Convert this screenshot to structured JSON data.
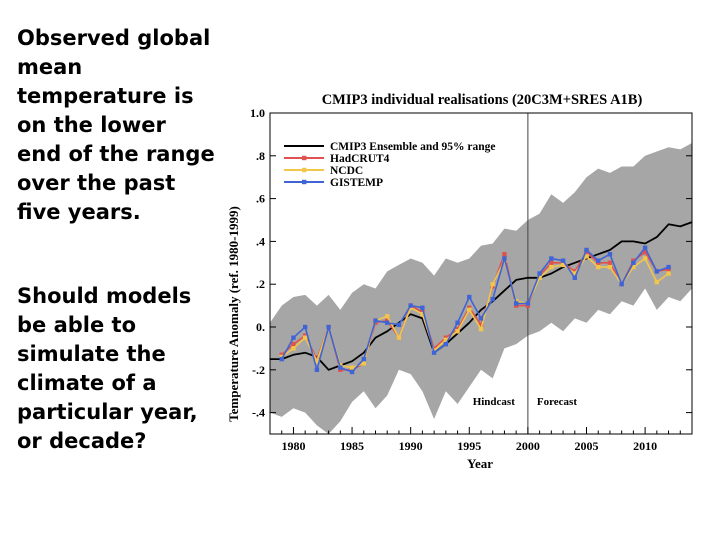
{
  "slide": {
    "paragraph_1": "Observed global mean temperature is on the lower end of the range over the past five years.",
    "paragraph_2": "Should models be able to simulate the climate of a particular year, or decade?"
  },
  "chart_data": {
    "type": "line",
    "title": "CMIP3 individual realisations (20C3M+SRES A1B)",
    "xlabel": "Year",
    "ylabel": "Temperature Anomaly (ref. 1980-1999)",
    "xlim": [
      1978,
      2014
    ],
    "ylim": [
      -0.5,
      1.0
    ],
    "x_ticks": [
      1980,
      1985,
      1990,
      1995,
      2000,
      2005,
      2010
    ],
    "x_tick_labels": [
      "1980",
      "1985",
      "1990",
      "1995",
      "2000",
      "2005",
      "2010"
    ],
    "y_ticks": [
      -0.4,
      -0.2,
      0.0,
      0.2,
      0.4,
      0.6,
      0.8,
      1.0
    ],
    "y_tick_labels": [
      "-.4",
      "-.2",
      "0.",
      ".2",
      ".4",
      ".6",
      ".8",
      "1.0"
    ],
    "divider_year": 2000,
    "annotations": {
      "left": "Hindcast",
      "right": "Forecast"
    },
    "range_band": {
      "name": "95% range",
      "color": "#a6a6a6",
      "x": [
        1978,
        1979,
        1980,
        1981,
        1982,
        1983,
        1984,
        1985,
        1986,
        1987,
        1988,
        1989,
        1990,
        1991,
        1992,
        1993,
        1994,
        1995,
        1996,
        1997,
        1998,
        1999,
        2000,
        2001,
        2002,
        2003,
        2004,
        2005,
        2006,
        2007,
        2008,
        2009,
        2010,
        2011,
        2012,
        2013,
        2014
      ],
      "upper": [
        0.02,
        0.1,
        0.14,
        0.15,
        0.1,
        0.15,
        0.08,
        0.16,
        0.2,
        0.18,
        0.26,
        0.29,
        0.32,
        0.3,
        0.24,
        0.32,
        0.3,
        0.32,
        0.38,
        0.39,
        0.46,
        0.45,
        0.5,
        0.53,
        0.62,
        0.58,
        0.63,
        0.7,
        0.74,
        0.72,
        0.75,
        0.75,
        0.8,
        0.82,
        0.84,
        0.83,
        0.86
      ],
      "lower": [
        -0.4,
        -0.42,
        -0.38,
        -0.4,
        -0.46,
        -0.5,
        -0.44,
        -0.35,
        -0.3,
        -0.38,
        -0.32,
        -0.2,
        -0.22,
        -0.3,
        -0.43,
        -0.3,
        -0.36,
        -0.28,
        -0.2,
        -0.24,
        -0.1,
        -0.08,
        -0.04,
        -0.02,
        0.02,
        -0.02,
        0.04,
        0.02,
        0.08,
        0.06,
        0.12,
        0.1,
        0.18,
        0.08,
        0.14,
        0.12,
        0.18
      ]
    },
    "series": [
      {
        "name": "CMIP3 Ensemble and 95% range",
        "color": "#000000",
        "marker": false,
        "x": [
          1978,
          1979,
          1980,
          1981,
          1982,
          1983,
          1984,
          1985,
          1986,
          1987,
          1988,
          1989,
          1990,
          1991,
          1992,
          1993,
          1994,
          1995,
          1996,
          1997,
          1998,
          1999,
          2000,
          2001,
          2002,
          2003,
          2004,
          2005,
          2006,
          2007,
          2008,
          2009,
          2010,
          2011,
          2012,
          2013,
          2014
        ],
        "values": [
          -0.15,
          -0.15,
          -0.13,
          -0.12,
          -0.14,
          -0.2,
          -0.18,
          -0.16,
          -0.12,
          -0.05,
          -0.02,
          0.02,
          0.06,
          0.04,
          -0.12,
          -0.08,
          -0.03,
          0.02,
          0.08,
          0.12,
          0.17,
          0.22,
          0.23,
          0.23,
          0.25,
          0.28,
          0.3,
          0.32,
          0.34,
          0.36,
          0.4,
          0.4,
          0.39,
          0.42,
          0.48,
          0.47,
          0.49
        ]
      },
      {
        "name": "HadCRUT4",
        "color": "#e0524c",
        "marker": true,
        "x": [
          1979,
          1980,
          1981,
          1982,
          1983,
          1984,
          1985,
          1986,
          1987,
          1988,
          1989,
          1990,
          1991,
          1992,
          1993,
          1994,
          1995,
          1996,
          1997,
          1998,
          1999,
          2000,
          2001,
          2002,
          2003,
          2004,
          2005,
          2006,
          2007,
          2008,
          2009,
          2010,
          2011,
          2012
        ],
        "values": [
          -0.13,
          -0.08,
          -0.04,
          -0.15,
          0.0,
          -0.2,
          -0.2,
          -0.17,
          0.02,
          0.03,
          -0.05,
          0.1,
          0.07,
          -0.1,
          -0.05,
          -0.01,
          0.09,
          0.01,
          0.19,
          0.34,
          0.1,
          0.1,
          0.24,
          0.3,
          0.3,
          0.26,
          0.35,
          0.3,
          0.3,
          0.2,
          0.31,
          0.35,
          0.26,
          0.27
        ]
      },
      {
        "name": "NCDC",
        "color": "#f2c64a",
        "marker": true,
        "x": [
          1979,
          1980,
          1981,
          1982,
          1983,
          1984,
          1985,
          1986,
          1987,
          1988,
          1989,
          1990,
          1991,
          1992,
          1993,
          1994,
          1995,
          1996,
          1997,
          1998,
          1999,
          2000,
          2001,
          2002,
          2003,
          2004,
          2005,
          2006,
          2007,
          2008,
          2009,
          2010,
          2011,
          2012
        ],
        "values": [
          -0.14,
          -0.1,
          -0.05,
          -0.16,
          0.0,
          -0.18,
          -0.19,
          -0.17,
          0.03,
          0.05,
          -0.05,
          0.09,
          0.06,
          -0.11,
          -0.06,
          -0.02,
          0.08,
          -0.01,
          0.2,
          0.31,
          0.12,
          0.11,
          0.23,
          0.28,
          0.29,
          0.25,
          0.33,
          0.28,
          0.28,
          0.2,
          0.28,
          0.32,
          0.21,
          0.25
        ]
      },
      {
        "name": "GISTEMP",
        "color": "#3f64d6",
        "marker": true,
        "x": [
          1979,
          1980,
          1981,
          1982,
          1983,
          1984,
          1985,
          1986,
          1987,
          1988,
          1989,
          1990,
          1991,
          1992,
          1993,
          1994,
          1995,
          1996,
          1997,
          1998,
          1999,
          2000,
          2001,
          2002,
          2003,
          2004,
          2005,
          2006,
          2007,
          2008,
          2009,
          2010,
          2011,
          2012
        ],
        "values": [
          -0.15,
          -0.05,
          0.0,
          -0.2,
          0.0,
          -0.19,
          -0.21,
          -0.15,
          0.03,
          0.02,
          0.01,
          0.1,
          0.09,
          -0.12,
          -0.08,
          0.02,
          0.14,
          0.04,
          0.13,
          0.32,
          0.11,
          0.11,
          0.25,
          0.32,
          0.31,
          0.23,
          0.36,
          0.31,
          0.34,
          0.2,
          0.3,
          0.37,
          0.26,
          0.28
        ]
      }
    ]
  }
}
